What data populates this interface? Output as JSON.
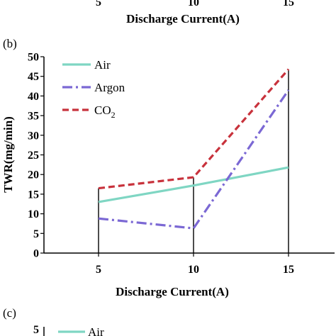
{
  "top_fragment": {
    "tick_labels": [
      "5",
      "10",
      "15"
    ],
    "xlabel": "Discharge Current(A)"
  },
  "bottom_fragment": {
    "panel_label": "(c)",
    "y_tick": "5",
    "legend_first": "Air"
  },
  "chart_data": {
    "type": "line",
    "panel_label": "(b)",
    "x": [
      5,
      10,
      15
    ],
    "categories": [
      "5",
      "10",
      "15"
    ],
    "xlabel": "Discharge Current(A)",
    "ylabel": "TWR(mg/min)",
    "ylim": [
      0,
      50
    ],
    "yticks": [
      0,
      5,
      10,
      15,
      20,
      25,
      30,
      35,
      40,
      45,
      50
    ],
    "grid": false,
    "legend_placement": "top-left",
    "series": [
      {
        "name": "Air",
        "values": [
          13,
          17.2,
          21.8
        ],
        "color": "#7fd6c3",
        "dash": "solid"
      },
      {
        "name": "Argon",
        "values": [
          8.8,
          6.3,
          41.5
        ],
        "color": "#7b68d4",
        "dash": "dashdot"
      },
      {
        "name": "CO2",
        "name_main": "CO",
        "name_sub": "2",
        "values": [
          16.5,
          19.3,
          46.8
        ],
        "color": "#c8323c",
        "dash": "dashed"
      }
    ]
  }
}
